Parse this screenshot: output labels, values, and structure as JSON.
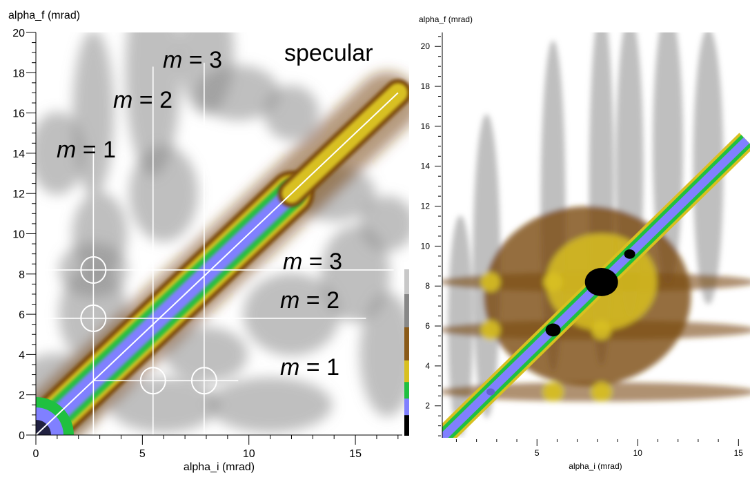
{
  "chart_data": [
    {
      "type": "heatmap",
      "ylabel": "alpha_f (mrad)",
      "xlabel": "alpha_i (mrad)",
      "xlim": [
        0,
        17.2
      ],
      "ylim": [
        0,
        20
      ],
      "x_ticks": [
        "0",
        "5",
        "10",
        "15"
      ],
      "y_ticks": [
        "0",
        "2",
        "4",
        "6",
        "8",
        "10",
        "12",
        "14",
        "16",
        "18",
        "20"
      ],
      "colormap": [
        "#ffffff",
        "#8a8a8a",
        "#7a4a10",
        "#d8c020",
        "#20c040",
        "#8080ff",
        "#000000"
      ],
      "specular": {
        "label": "specular",
        "from": [
          0,
          0
        ],
        "to": [
          17,
          17
        ]
      },
      "ridges": [
        {
          "from": [
            0,
            0
          ],
          "to": [
            12,
            12
          ],
          "intensity": 1.0
        },
        {
          "from": [
            12,
            12
          ],
          "to": [
            17,
            17
          ],
          "intensity": 0.7
        }
      ],
      "bragg_lines": {
        "vertical": [
          {
            "m": "m",
            "eq": "= 1",
            "x": 2.7,
            "y_top": 14.3
          },
          {
            "m": "m",
            "eq": "= 2",
            "x": 5.5,
            "y_top": 18.3
          },
          {
            "m": "m",
            "eq": "= 3",
            "x": 7.9,
            "y_top": 18.5
          }
        ],
        "horizontal": [
          {
            "m": "m",
            "eq": "= 1",
            "y": 2.7,
            "x_right": 9.5
          },
          {
            "m": "m",
            "eq": "= 2",
            "y": 5.8,
            "x_right": 15.5
          },
          {
            "m": "m",
            "eq": "= 3",
            "y": 8.2,
            "x_right": 16.8
          }
        ]
      },
      "circles": [
        [
          2.7,
          8.2
        ],
        [
          2.7,
          5.8
        ],
        [
          5.5,
          2.7
        ],
        [
          7.9,
          2.7
        ]
      ]
    },
    {
      "type": "heatmap",
      "ylabel": "alpha_f (mrad)",
      "xlabel": "alpha_i (mrad)",
      "xlim": [
        0.3,
        15.4
      ],
      "ylim": [
        0.4,
        20.7
      ],
      "x_ticks": [
        "5",
        "10",
        "15"
      ],
      "y_ticks": [
        "2",
        "4",
        "6",
        "8",
        "10",
        "12",
        "14",
        "16",
        "18",
        "20"
      ],
      "colormap": [
        "#ffffff",
        "#8a8a8a",
        "#7a4a10",
        "#d8c020",
        "#20c040",
        "#8080ff",
        "#000000"
      ],
      "ridge": {
        "from": [
          0.3,
          0.4
        ],
        "to": [
          15.4,
          15.3
        ]
      },
      "peaks": [
        [
          2.7,
          2.7
        ],
        [
          5.8,
          5.8
        ],
        [
          8.2,
          8.2
        ],
        [
          9.6,
          9.6
        ]
      ],
      "satellites": [
        [
          2.7,
          8.2
        ],
        [
          2.7,
          5.8
        ],
        [
          5.8,
          2.7
        ],
        [
          8.2,
          2.7
        ],
        [
          5.8,
          8.2
        ],
        [
          8.2,
          5.8
        ]
      ]
    }
  ]
}
